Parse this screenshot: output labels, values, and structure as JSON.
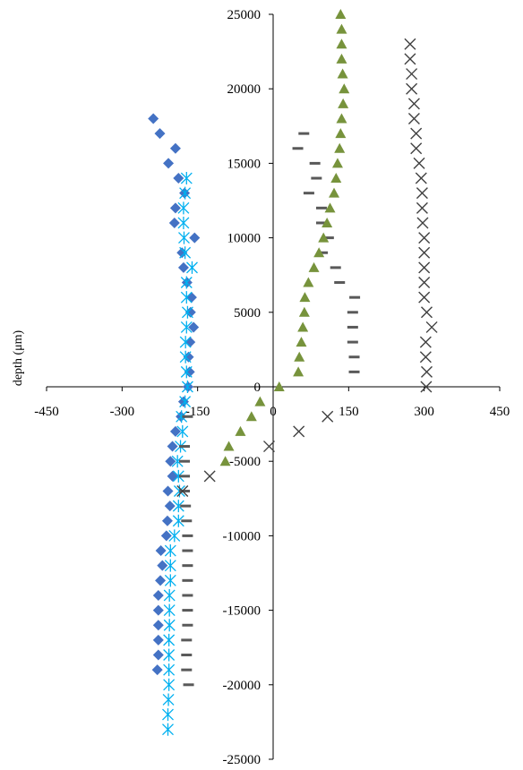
{
  "chart_data": {
    "type": "scatter",
    "ylabel": "depth (μm)",
    "xlim": [
      -450,
      450
    ],
    "ylim": [
      -25000,
      25000
    ],
    "x_ticks": [
      -450,
      -300,
      -150,
      0,
      150,
      300,
      450
    ],
    "y_ticks": [
      25000,
      20000,
      15000,
      10000,
      5000,
      0,
      -5000,
      -10000,
      -15000,
      -20000,
      -25000
    ],
    "x_tick_labels": [
      "-450",
      "-300",
      "-150",
      "0",
      "150",
      "300",
      "450"
    ],
    "y_tick_labels": [
      "25000",
      "20000",
      "15000",
      "10000",
      "5000",
      "0",
      "-5000",
      "-10000",
      "-15000",
      "-20000",
      "-25000"
    ],
    "grid": false,
    "series": [
      {
        "marker": "diamond",
        "color": "#4472C4",
        "points": [
          [
            -238,
            18000
          ],
          [
            -225,
            17000
          ],
          [
            -194,
            16000
          ],
          [
            -208,
            15000
          ],
          [
            -188,
            14000
          ],
          [
            -176,
            13000
          ],
          [
            -194,
            12000
          ],
          [
            -196,
            11000
          ],
          [
            -156,
            10000
          ],
          [
            -181,
            9000
          ],
          [
            -178,
            8000
          ],
          [
            -171,
            7000
          ],
          [
            -162,
            6000
          ],
          [
            -164,
            5000
          ],
          [
            -158,
            4000
          ],
          [
            -165,
            3000
          ],
          [
            -168,
            2000
          ],
          [
            -166,
            1000
          ],
          [
            -169,
            0
          ],
          [
            -178,
            -1000
          ],
          [
            -183,
            -2000
          ],
          [
            -194,
            -3000
          ],
          [
            -200,
            -4000
          ],
          [
            -204,
            -5000
          ],
          [
            -200,
            -6000
          ],
          [
            -209,
            -7000
          ],
          [
            -205,
            -8000
          ],
          [
            -210,
            -9000
          ],
          [
            -212,
            -10000
          ],
          [
            -223,
            -11000
          ],
          [
            -220,
            -12000
          ],
          [
            -224,
            -13000
          ],
          [
            -228,
            -14000
          ],
          [
            -228,
            -15000
          ],
          [
            -228,
            -16000
          ],
          [
            -228,
            -17000
          ],
          [
            -228,
            -18000
          ],
          [
            -230,
            -19000
          ]
        ]
      },
      {
        "marker": "asterisk",
        "color": "#00B0F0",
        "points": [
          [
            -172,
            14000
          ],
          [
            -175,
            13000
          ],
          [
            -178,
            12000
          ],
          [
            -178,
            11000
          ],
          [
            -177,
            10000
          ],
          [
            -175,
            9000
          ],
          [
            -161,
            8000
          ],
          [
            -172,
            7000
          ],
          [
            -172,
            6000
          ],
          [
            -170,
            5000
          ],
          [
            -172,
            4000
          ],
          [
            -174,
            3000
          ],
          [
            -174,
            2000
          ],
          [
            -172,
            1000
          ],
          [
            -170,
            0
          ],
          [
            -175,
            -1000
          ],
          [
            -182,
            -2000
          ],
          [
            -180,
            -3000
          ],
          [
            -184,
            -4000
          ],
          [
            -190,
            -5000
          ],
          [
            -188,
            -6000
          ],
          [
            -186,
            -7000
          ],
          [
            -188,
            -8000
          ],
          [
            -188,
            -9000
          ],
          [
            -196,
            -10000
          ],
          [
            -204,
            -11000
          ],
          [
            -204,
            -12000
          ],
          [
            -204,
            -13000
          ],
          [
            -206,
            -14000
          ],
          [
            -206,
            -15000
          ],
          [
            -206,
            -16000
          ],
          [
            -207,
            -17000
          ],
          [
            -207,
            -18000
          ],
          [
            -207,
            -19000
          ],
          [
            -207,
            -20000
          ],
          [
            -208,
            -21000
          ],
          [
            -209,
            -22000
          ],
          [
            -209,
            -23000
          ]
        ]
      },
      {
        "marker": "dash",
        "color": "#595959",
        "points": [
          [
            61,
            17000
          ],
          [
            49,
            16000
          ],
          [
            83,
            15000
          ],
          [
            86,
            14000
          ],
          [
            71,
            13000
          ],
          [
            96,
            12000
          ],
          [
            96,
            11000
          ],
          [
            110,
            10000
          ],
          [
            98,
            9000
          ],
          [
            124,
            8000
          ],
          [
            132,
            7000
          ],
          [
            162,
            6000
          ],
          [
            158,
            5000
          ],
          [
            158,
            4000
          ],
          [
            158,
            3000
          ],
          [
            161,
            2000
          ],
          [
            161,
            1000
          ],
          [
            -170,
            -2000
          ],
          [
            -176,
            -4000
          ],
          [
            -176,
            -5000
          ],
          [
            -176,
            -6000
          ],
          [
            -176,
            -7000
          ],
          [
            -174,
            -8000
          ],
          [
            -172,
            -9000
          ],
          [
            -170,
            -10000
          ],
          [
            -170,
            -11000
          ],
          [
            -170,
            -12000
          ],
          [
            -170,
            -13000
          ],
          [
            -170,
            -14000
          ],
          [
            -170,
            -15000
          ],
          [
            -170,
            -16000
          ],
          [
            -172,
            -17000
          ],
          [
            -172,
            -18000
          ],
          [
            -172,
            -19000
          ],
          [
            -168,
            -20000
          ]
        ]
      },
      {
        "marker": "triangle",
        "color": "#77933C",
        "points": [
          [
            134,
            25000
          ],
          [
            136,
            24000
          ],
          [
            136,
            23000
          ],
          [
            136,
            22000
          ],
          [
            138,
            21000
          ],
          [
            141,
            20000
          ],
          [
            139,
            19000
          ],
          [
            136,
            18000
          ],
          [
            134,
            17000
          ],
          [
            132,
            16000
          ],
          [
            128,
            15000
          ],
          [
            125,
            14000
          ],
          [
            121,
            13000
          ],
          [
            113,
            12000
          ],
          [
            107,
            11000
          ],
          [
            100,
            10000
          ],
          [
            91,
            9000
          ],
          [
            81,
            8000
          ],
          [
            70,
            7000
          ],
          [
            63,
            6000
          ],
          [
            62,
            5000
          ],
          [
            59,
            4000
          ],
          [
            56,
            3000
          ],
          [
            52,
            2000
          ],
          [
            50,
            1000
          ],
          [
            12,
            0
          ],
          [
            -26,
            -1000
          ],
          [
            -43,
            -2000
          ],
          [
            -65,
            -3000
          ],
          [
            -88,
            -4000
          ],
          [
            -95,
            -5000
          ]
        ]
      },
      {
        "marker": "x",
        "color": "#404040",
        "points": [
          [
            272,
            23000
          ],
          [
            272,
            22000
          ],
          [
            275,
            21000
          ],
          [
            275,
            20000
          ],
          [
            280,
            19000
          ],
          [
            280,
            18000
          ],
          [
            284,
            17000
          ],
          [
            284,
            16000
          ],
          [
            290,
            15000
          ],
          [
            294,
            14000
          ],
          [
            296,
            13000
          ],
          [
            296,
            12000
          ],
          [
            297,
            11000
          ],
          [
            300,
            10000
          ],
          [
            300,
            9000
          ],
          [
            300,
            8000
          ],
          [
            300,
            7000
          ],
          [
            300,
            6000
          ],
          [
            305,
            5000
          ],
          [
            315,
            4000
          ],
          [
            303,
            3000
          ],
          [
            303,
            2000
          ],
          [
            305,
            1000
          ],
          [
            304,
            0
          ],
          [
            108,
            -2000
          ],
          [
            51,
            -3000
          ],
          [
            -8,
            -4000
          ],
          [
            -126,
            -6000
          ],
          [
            -180,
            -7000
          ]
        ]
      }
    ]
  }
}
